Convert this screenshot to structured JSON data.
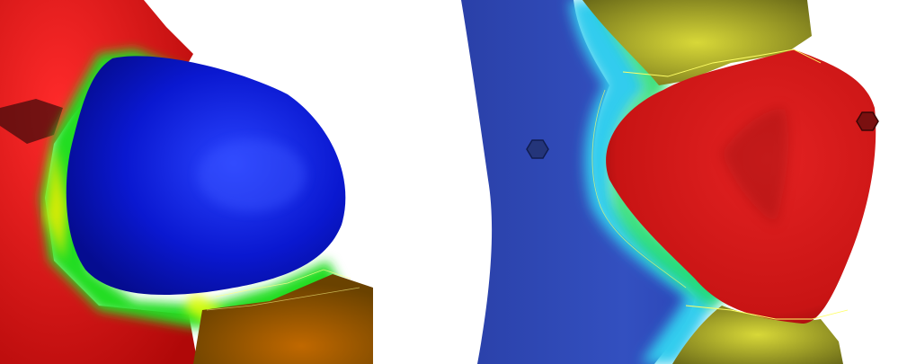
{
  "panels": [
    {
      "id": "left",
      "regions": [
        {
          "name": "red-region",
          "color": "#e01010"
        },
        {
          "name": "blue-region",
          "color": "#0a18d0"
        },
        {
          "name": "orange-region",
          "color": "#c87800"
        },
        {
          "name": "interface-band",
          "colors": [
            "#ffee00",
            "#22dd22",
            "#00ff88"
          ]
        }
      ]
    },
    {
      "id": "right",
      "regions": [
        {
          "name": "blue-region",
          "color": "#2b46b8"
        },
        {
          "name": "red-region",
          "color": "#d81818"
        },
        {
          "name": "yellow-top-region",
          "color": "#cfcf30"
        },
        {
          "name": "yellow-bottom-region",
          "color": "#cfcf30"
        },
        {
          "name": "interface-band",
          "colors": [
            "#33ccee",
            "#22dd66",
            "#ffee44"
          ]
        }
      ],
      "markers": [
        {
          "name": "hexagon-marker",
          "color": "#1b2e7a"
        },
        {
          "name": "hexagon-marker",
          "color": "#701010"
        }
      ]
    }
  ]
}
